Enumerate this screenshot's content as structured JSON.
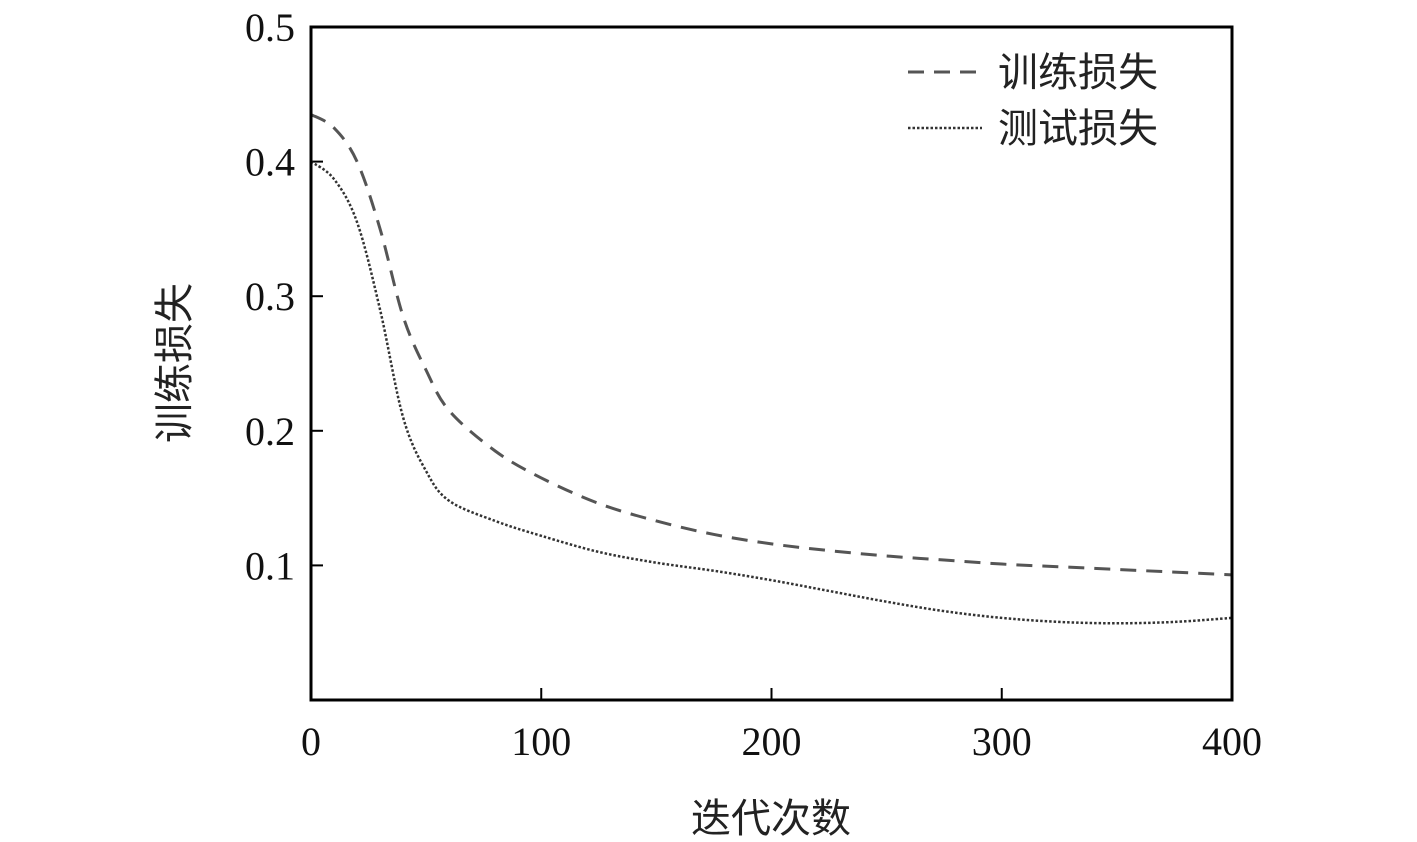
{
  "chart_data": {
    "type": "line",
    "title": "",
    "xlabel": "迭代次数",
    "ylabel": "训练损失",
    "xlim": [
      0,
      400
    ],
    "ylim": [
      0,
      0.5
    ],
    "xticks": [
      0,
      100,
      200,
      300,
      400
    ],
    "xtick_labels": [
      "0",
      "100",
      "200",
      "300",
      "400"
    ],
    "yticks": [
      0.1,
      0.2,
      0.3,
      0.4,
      0.5
    ],
    "ytick_labels": [
      "0.1",
      "0.2",
      "0.3",
      "0.4",
      "0.5"
    ],
    "grid": false,
    "legend_position": "top-right",
    "x": [
      0,
      10,
      20,
      30,
      40,
      50,
      60,
      80,
      100,
      125,
      150,
      175,
      200,
      225,
      250,
      275,
      300,
      325,
      350,
      375,
      400
    ],
    "series": [
      {
        "name": "训练损失",
        "style": "dashed",
        "color": "#555555",
        "values": [
          0.435,
          0.425,
          0.4,
          0.35,
          0.285,
          0.245,
          0.215,
          0.185,
          0.165,
          0.146,
          0.133,
          0.123,
          0.116,
          0.111,
          0.107,
          0.104,
          0.101,
          0.099,
          0.097,
          0.095,
          0.093
        ]
      },
      {
        "name": "测试损失",
        "style": "dotted",
        "color": "#333333",
        "values": [
          0.4,
          0.387,
          0.355,
          0.29,
          0.21,
          0.17,
          0.148,
          0.133,
          0.122,
          0.11,
          0.102,
          0.096,
          0.089,
          0.081,
          0.073,
          0.066,
          0.061,
          0.058,
          0.057,
          0.058,
          0.061
        ]
      }
    ]
  }
}
